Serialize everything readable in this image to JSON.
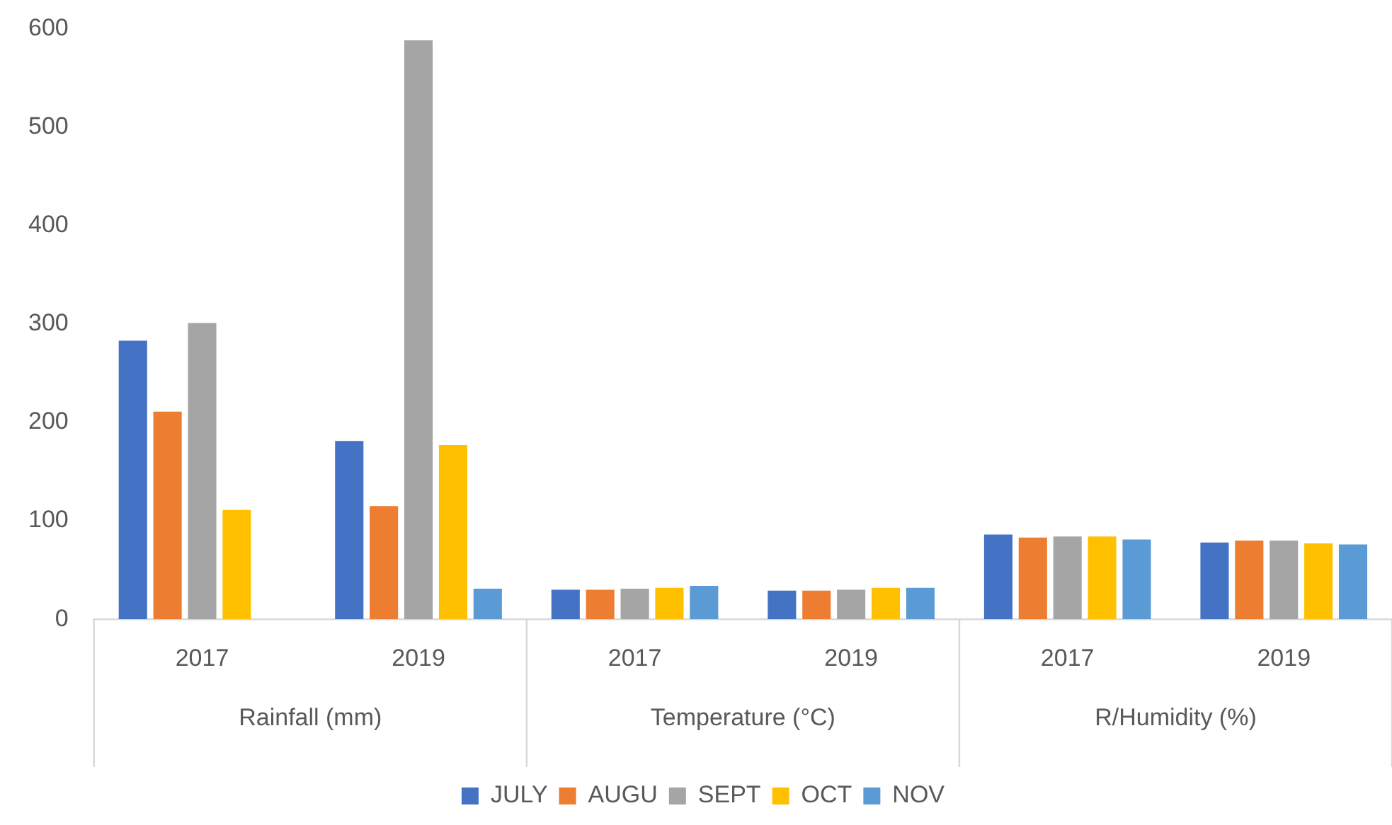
{
  "chart_data": {
    "type": "bar",
    "categories": [
      "2017",
      "2019",
      "2017",
      "2019",
      "2017",
      "2019"
    ],
    "annotations": [
      "Rainfall (mm)",
      "Temperature (°C)",
      "R/Humidity (%)"
    ],
    "series": [
      {
        "name": "JULY",
        "color": "#4472c4",
        "values": [
          283,
          181,
          30,
          29,
          86,
          78
        ]
      },
      {
        "name": "AUGU",
        "color": "#ed7d31",
        "values": [
          211,
          115,
          30,
          29,
          83,
          80
        ]
      },
      {
        "name": "SEPT",
        "color": "#a5a5a5",
        "values": [
          301,
          588,
          31,
          30,
          84,
          80
        ]
      },
      {
        "name": "OCT",
        "color": "#ffc000",
        "values": [
          111,
          177,
          32,
          32,
          84,
          77
        ]
      },
      {
        "name": "NOV",
        "color": "#5b9bd5",
        "values": [
          null,
          31,
          34,
          32,
          81,
          76
        ]
      }
    ],
    "ylim": [
      0,
      600
    ],
    "yticks": [
      0,
      100,
      200,
      300,
      400,
      500,
      600
    ],
    "grid": false,
    "legend": "bottom"
  }
}
